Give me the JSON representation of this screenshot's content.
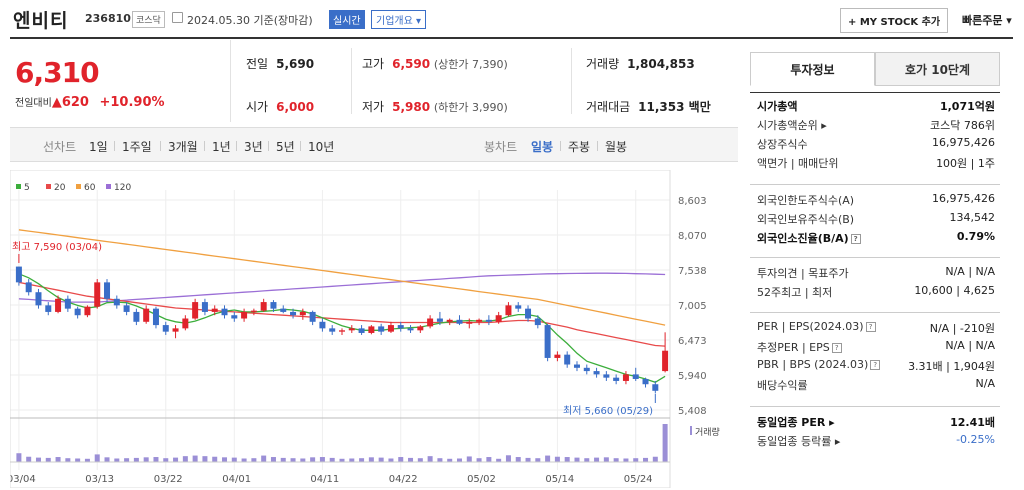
{
  "header": {
    "name": "엔비티",
    "code": "236810",
    "market": "코스닥",
    "date": "2024.05.30 기준(장마감)",
    "realtime": "실시간",
    "company_info": "기업개요 ▾",
    "my_stock": "+ MY STOCK 추가",
    "quick_order": "빠른주문 ▾"
  },
  "price": {
    "current": "6,310",
    "change_label": "전일대비",
    "change_arrow": "▲",
    "change": "620",
    "change_pct": "+10.90%"
  },
  "stats": {
    "prev_label": "전일",
    "prev": "5,690",
    "open_label": "시가",
    "open": "6,000",
    "high_label": "고가",
    "high": "6,590",
    "upper": "(상한가 7,390)",
    "low_label": "저가",
    "low": "5,980",
    "lower": "(하한가 3,990)",
    "volume_label": "거래량",
    "volume": "1,804,853",
    "amount_label": "거래대금",
    "amount": "11,353 백만"
  },
  "range": {
    "label_line": "선차트",
    "items": [
      "1일",
      "1주일",
      "3개월",
      "1년",
      "3년",
      "5년",
      "10년"
    ],
    "label_candle": "봉차트",
    "candle_items": [
      "일봉",
      "주봉",
      "월봉"
    ],
    "active_candle": "일봉"
  },
  "chart_data": {
    "type": "candlestick",
    "legend": [
      "5",
      "20",
      "60",
      "120"
    ],
    "legend_colors": [
      "#3cae3c",
      "#e84a4a",
      "#f0a040",
      "#9b6fd6"
    ],
    "y_ticks": [
      "8,603",
      "8,070",
      "7,538",
      "7,005",
      "6,473",
      "5,940",
      "5,408"
    ],
    "y_range": [
      5408,
      8603
    ],
    "x_ticks": [
      "03/04",
      "03/13",
      "03/22",
      "04/01",
      "04/11",
      "04/22",
      "05/02",
      "05/14",
      "05/24"
    ],
    "max_label": "최고 7,590 (03/04)",
    "min_label": "최저 5,660 (05/29)",
    "volume_label": "거래량",
    "candles": [
      [
        7590,
        7590,
        7300,
        7350
      ],
      [
        7350,
        7400,
        7150,
        7200
      ],
      [
        7200,
        7250,
        6950,
        7000
      ],
      [
        7000,
        7050,
        6850,
        6900
      ],
      [
        6900,
        7150,
        6880,
        7100
      ],
      [
        7100,
        7150,
        6900,
        6950
      ],
      [
        6950,
        6980,
        6800,
        6850
      ],
      [
        6850,
        7000,
        6820,
        6980
      ],
      [
        6980,
        7400,
        6950,
        7350
      ],
      [
        7350,
        7400,
        7050,
        7100
      ],
      [
        7100,
        7150,
        6950,
        7000
      ],
      [
        7000,
        7050,
        6850,
        6900
      ],
      [
        6900,
        6950,
        6700,
        6750
      ],
      [
        6750,
        7000,
        6720,
        6950
      ],
      [
        6950,
        6980,
        6650,
        6700
      ],
      [
        6700,
        6750,
        6550,
        6600
      ],
      [
        6600,
        6700,
        6500,
        6650
      ],
      [
        6650,
        6850,
        6620,
        6800
      ],
      [
        6800,
        7100,
        6780,
        7050
      ],
      [
        7050,
        7100,
        6850,
        6900
      ],
      [
        6900,
        7000,
        6850,
        6950
      ],
      [
        6950,
        7000,
        6800,
        6850
      ],
      [
        6850,
        6900,
        6750,
        6800
      ],
      [
        6800,
        6950,
        6750,
        6900
      ],
      [
        6900,
        6950,
        6850,
        6920
      ],
      [
        6920,
        7100,
        6900,
        7050
      ],
      [
        7050,
        7080,
        6900,
        6950
      ],
      [
        6950,
        7000,
        6880,
        6900
      ],
      [
        6900,
        6950,
        6800,
        6850
      ],
      [
        6850,
        6950,
        6780,
        6900
      ],
      [
        6900,
        6920,
        6700,
        6750
      ],
      [
        6750,
        6800,
        6600,
        6650
      ],
      [
        6650,
        6700,
        6550,
        6600
      ],
      [
        6600,
        6650,
        6550,
        6620
      ],
      [
        6620,
        6700,
        6580,
        6650
      ],
      [
        6650,
        6700,
        6550,
        6580
      ],
      [
        6580,
        6700,
        6560,
        6680
      ],
      [
        6680,
        6720,
        6550,
        6600
      ],
      [
        6600,
        6750,
        6580,
        6700
      ],
      [
        6700,
        6750,
        6600,
        6650
      ],
      [
        6650,
        6700,
        6580,
        6620
      ],
      [
        6620,
        6700,
        6580,
        6680
      ],
      [
        6680,
        6850,
        6650,
        6800
      ],
      [
        6800,
        6900,
        6700,
        6750
      ],
      [
        6750,
        6800,
        6700,
        6780
      ],
      [
        6780,
        6850,
        6700,
        6720
      ],
      [
        6720,
        6800,
        6650,
        6750
      ],
      [
        6750,
        6800,
        6700,
        6780
      ],
      [
        6780,
        6850,
        6700,
        6750
      ],
      [
        6750,
        6900,
        6720,
        6850
      ],
      [
        6850,
        7050,
        6830,
        7000
      ],
      [
        7000,
        7050,
        6900,
        6950
      ],
      [
        6950,
        7000,
        6750,
        6800
      ],
      [
        6800,
        6850,
        6650,
        6700
      ],
      [
        6700,
        6720,
        6150,
        6200
      ],
      [
        6200,
        6300,
        6150,
        6250
      ],
      [
        6250,
        6300,
        6050,
        6100
      ],
      [
        6100,
        6150,
        6000,
        6050
      ],
      [
        6050,
        6100,
        5950,
        6000
      ],
      [
        6000,
        6050,
        5900,
        5950
      ],
      [
        5950,
        6000,
        5850,
        5900
      ],
      [
        5900,
        5950,
        5800,
        5850
      ],
      [
        5850,
        6000,
        5800,
        5950
      ],
      [
        5950,
        6050,
        5850,
        5880
      ],
      [
        5880,
        5900,
        5750,
        5800
      ],
      [
        5800,
        5850,
        5660,
        5700
      ],
      [
        6000,
        6590,
        5980,
        6310
      ]
    ],
    "ma5": [
      7480,
      7420,
      7330,
      7220,
      7120,
      7050,
      7000,
      6960,
      6980,
      7040,
      7050,
      7040,
      6990,
      6930,
      6860,
      6790,
      6750,
      6730,
      6760,
      6810,
      6870,
      6910,
      6930,
      6900,
      6900,
      6910,
      6920,
      6940,
      6930,
      6910,
      6870,
      6810,
      6750,
      6690,
      6650,
      6620,
      6620,
      6620,
      6640,
      6650,
      6660,
      6670,
      6700,
      6730,
      6750,
      6760,
      6770,
      6760,
      6760,
      6780,
      6830,
      6860,
      6860,
      6830,
      6700,
      6550,
      6420,
      6270,
      6150,
      6100,
      6050,
      6000,
      5950,
      5920,
      5880,
      5830,
      5920
    ],
    "ma20": [
      7350,
      7320,
      7290,
      7260,
      7230,
      7200,
      7170,
      7140,
      7120,
      7100,
      7080,
      7060,
      7040,
      7020,
      7000,
      6980,
      6960,
      6950,
      6940,
      6930,
      6920,
      6910,
      6900,
      6890,
      6880,
      6870,
      6860,
      6850,
      6840,
      6830,
      6820,
      6810,
      6800,
      6790,
      6780,
      6770,
      6760,
      6750,
      6740,
      6740,
      6740,
      6740,
      6740,
      6740,
      6740,
      6740,
      6740,
      6740,
      6740,
      6750,
      6760,
      6770,
      6770,
      6760,
      6730,
      6700,
      6670,
      6630,
      6600,
      6570,
      6540,
      6510,
      6480,
      6450,
      6420,
      6390,
      6380
    ],
    "ma60": [
      8150,
      8130,
      8110,
      8090,
      8070,
      8050,
      8030,
      8010,
      7990,
      7970,
      7950,
      7930,
      7910,
      7890,
      7870,
      7850,
      7830,
      7810,
      7790,
      7770,
      7750,
      7730,
      7710,
      7690,
      7670,
      7650,
      7630,
      7610,
      7590,
      7570,
      7550,
      7530,
      7510,
      7490,
      7470,
      7450,
      7430,
      7410,
      7390,
      7370,
      7350,
      7330,
      7310,
      7290,
      7270,
      7250,
      7230,
      7210,
      7190,
      7170,
      7150,
      7130,
      7110,
      7090,
      7060,
      7030,
      7000,
      6970,
      6940,
      6910,
      6880,
      6850,
      6820,
      6790,
      6760,
      6730,
      6700
    ],
    "ma120": [
      7100,
      7090,
      7080,
      7070,
      7060,
      7050,
      7050,
      7050,
      7050,
      7060,
      7070,
      7080,
      7090,
      7100,
      7110,
      7120,
      7130,
      7140,
      7150,
      7160,
      7170,
      7180,
      7190,
      7200,
      7210,
      7220,
      7230,
      7240,
      7250,
      7260,
      7270,
      7280,
      7290,
      7300,
      7310,
      7320,
      7330,
      7340,
      7350,
      7360,
      7370,
      7380,
      7390,
      7400,
      7410,
      7420,
      7430,
      7440,
      7450,
      7455,
      7460,
      7465,
      7470,
      7475,
      7480,
      7482,
      7484,
      7486,
      7488,
      7490,
      7490,
      7488,
      7486,
      7482,
      7478,
      7474,
      7470
    ],
    "volumes": [
      300,
      180,
      150,
      140,
      170,
      130,
      120,
      110,
      260,
      160,
      120,
      130,
      140,
      160,
      170,
      130,
      150,
      200,
      220,
      200,
      180,
      160,
      150,
      120,
      130,
      220,
      170,
      140,
      130,
      120,
      160,
      170,
      140,
      110,
      120,
      130,
      160,
      150,
      120,
      170,
      140,
      130,
      200,
      130,
      110,
      120,
      190,
      130,
      170,
      110,
      230,
      170,
      140,
      130,
      220,
      180,
      170,
      150,
      130,
      150,
      160,
      130,
      120,
      130,
      140,
      180,
      1300
    ]
  },
  "right": {
    "tab_active": "투자정보",
    "tab_other": "호가 10단계",
    "g1": [
      [
        "시가총액",
        "1,071억원"
      ],
      [
        "시가총액순위 ▸",
        "코스닥 786위"
      ],
      [
        "상장주식수",
        "16,975,426"
      ],
      [
        "액면가 | 매매단위",
        "100원 | 1주"
      ]
    ],
    "g2": [
      [
        "외국인한도주식수(A)",
        "16,975,426"
      ],
      [
        "외국인보유주식수(B)",
        "134,542"
      ],
      [
        "외국인소진율(B/A)",
        "0.79%"
      ]
    ],
    "g3": [
      [
        "투자의견 | 목표주가",
        "N/A | N/A"
      ],
      [
        "52주최고 | 최저",
        "10,600 | 4,625"
      ]
    ],
    "g4": [
      [
        "PER | EPS(2024.03)",
        "N/A | -210원"
      ],
      [
        "추정PER | EPS",
        "N/A | N/A"
      ],
      [
        "PBR | BPS (2024.03)",
        "3.31배 | 1,904원"
      ],
      [
        "배당수익률",
        "N/A"
      ]
    ],
    "g5": [
      [
        "동일업종 PER ▸",
        "12.41배"
      ],
      [
        "동일업종 등락률 ▸",
        "-0.25%"
      ]
    ]
  }
}
